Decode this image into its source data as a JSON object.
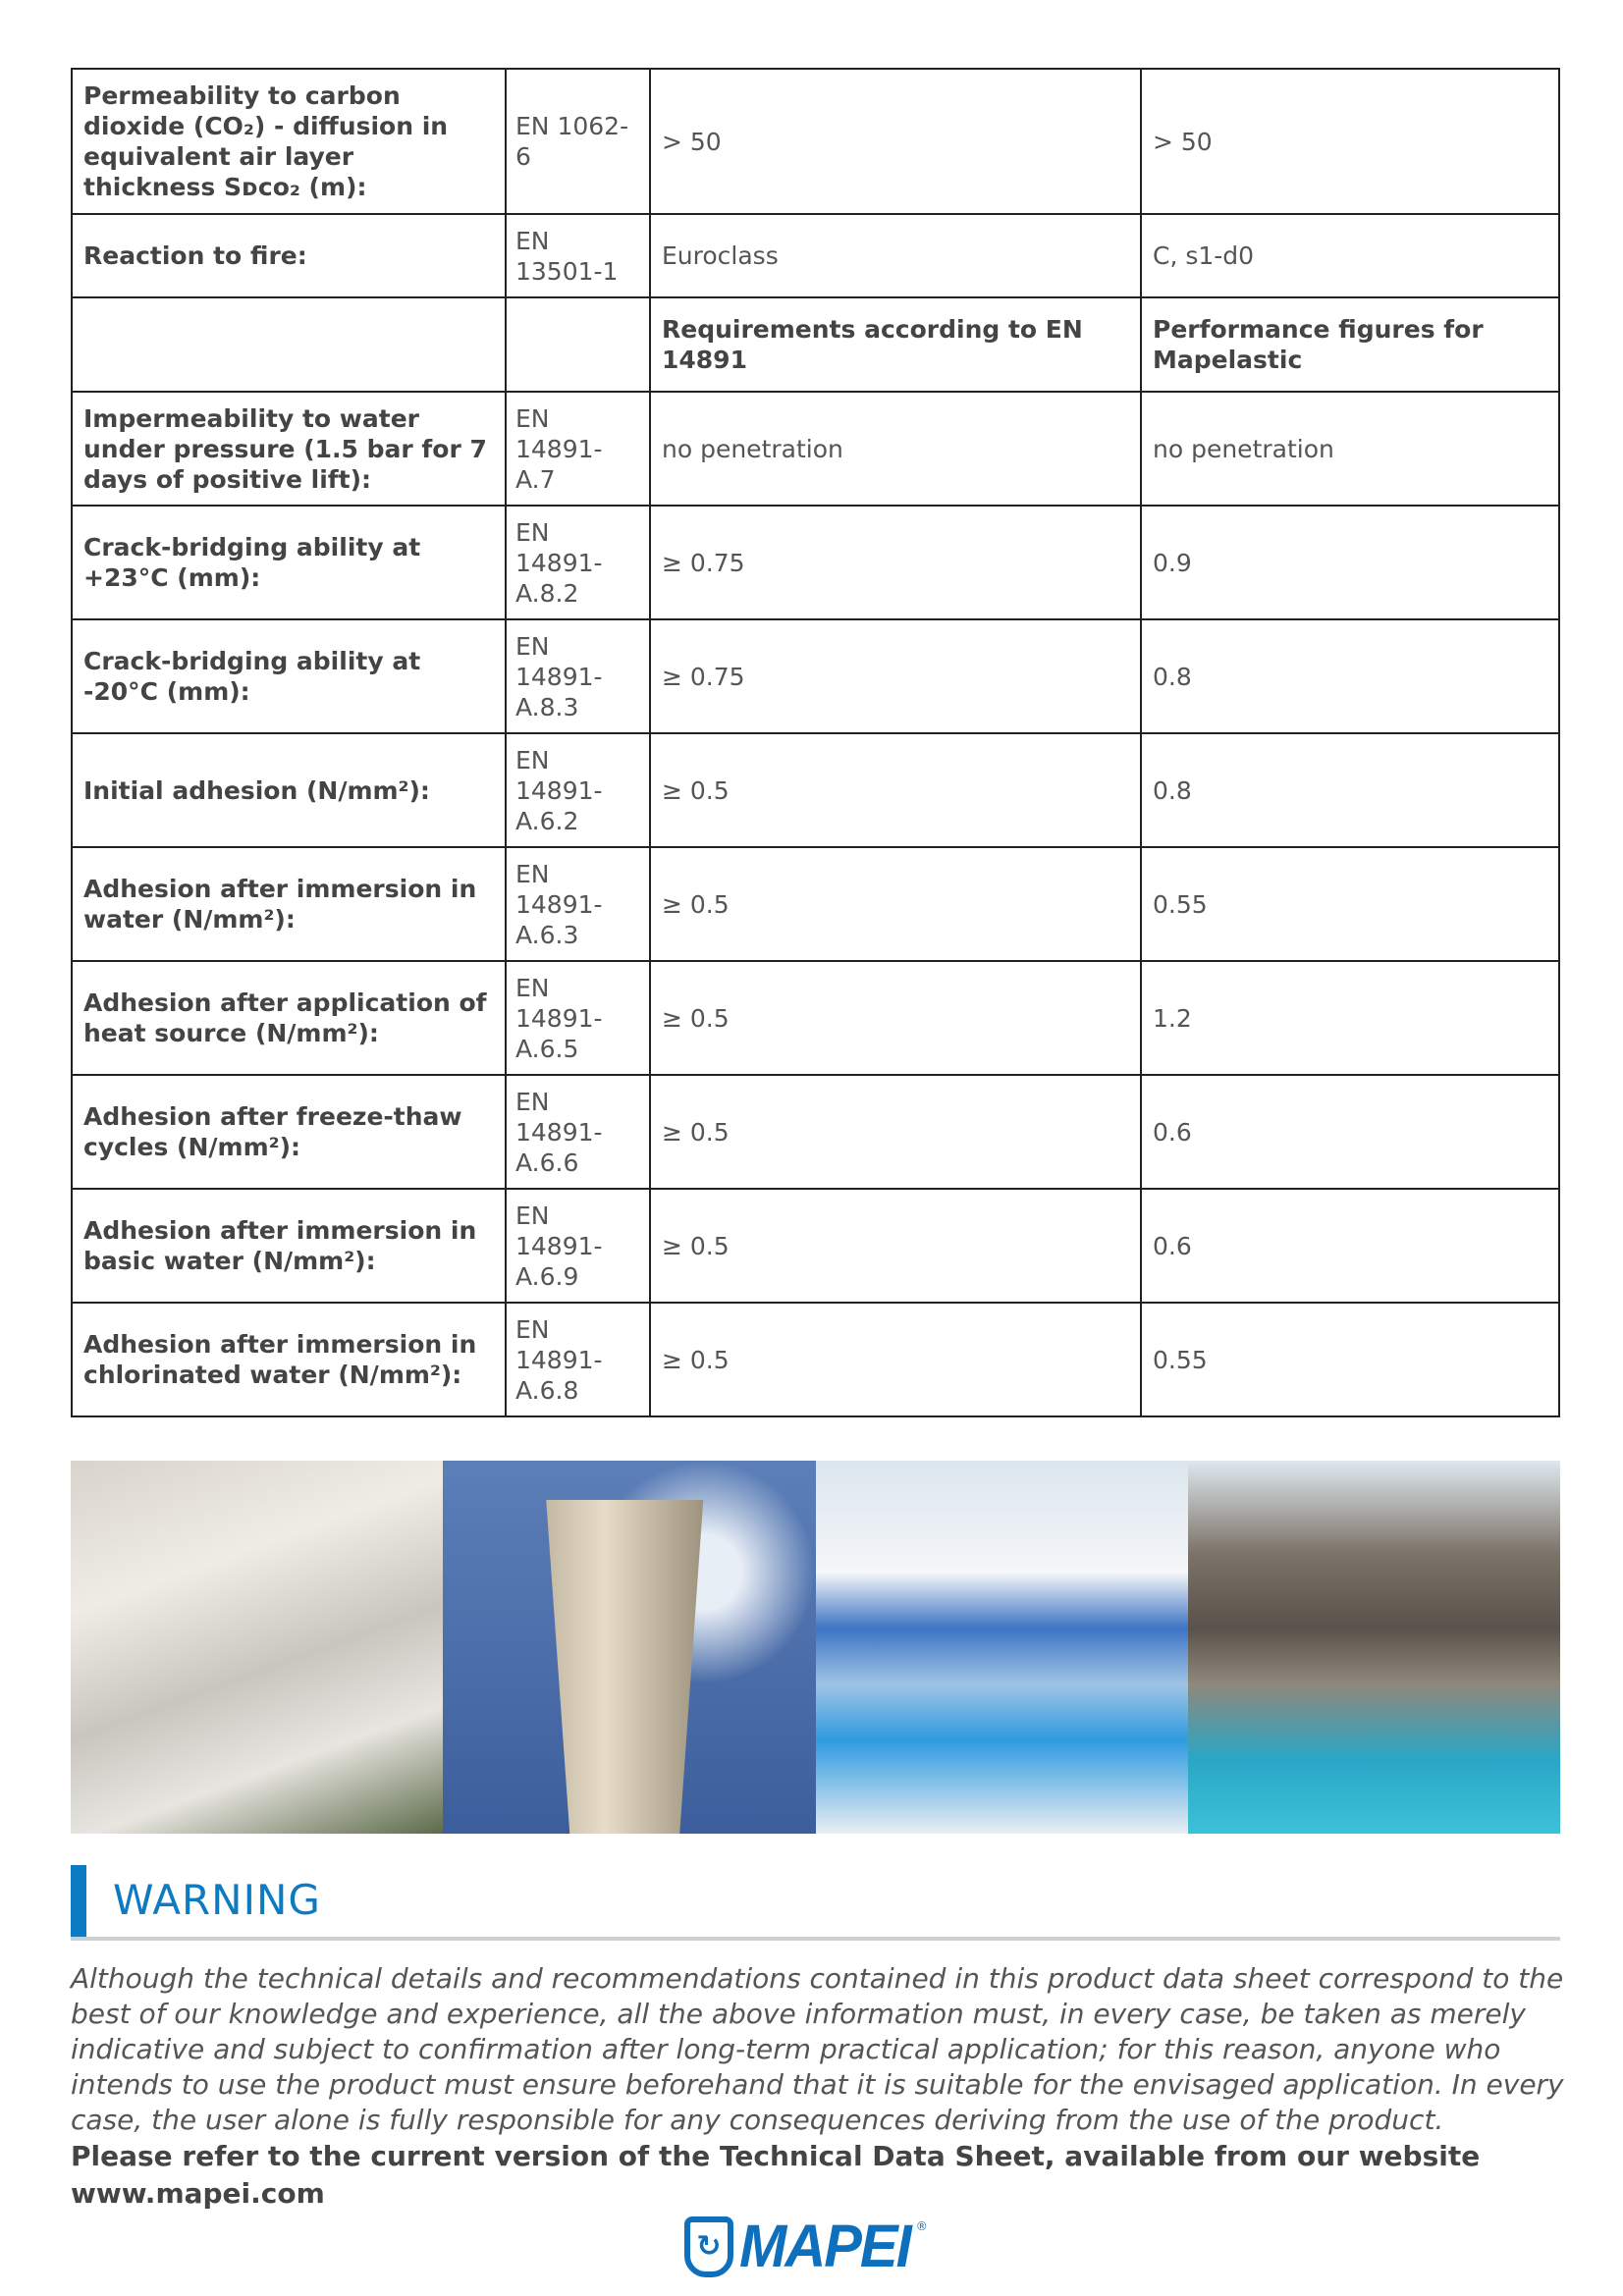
{
  "table": {
    "rows": [
      {
        "property": "Permeability to carbon dioxide (CO₂) - diffusion in equivalent air layer thickness Sᴅᴄᴏ₂ (m):",
        "standard": "EN 1062-6",
        "requirement": "> 50",
        "performance": "> 50"
      },
      {
        "property": "Reaction to fire:",
        "standard": "EN 13501-1",
        "requirement": "Euroclass",
        "performance": "C, s1-d0"
      }
    ],
    "header": {
      "requirement": "Requirements according to EN 14891",
      "performance": "Performance figures for Mapelastic"
    },
    "rows2": [
      {
        "property": "Impermeability to water under pressure (1.5 bar for 7 days of positive lift):",
        "standard": "EN 14891-A.7",
        "requirement": "no penetration",
        "performance": "no penetration"
      },
      {
        "property": "Crack-bridging ability at +23°C (mm):",
        "standard": "EN 14891-A.8.2",
        "requirement": "≥ 0.75",
        "performance": "0.9"
      },
      {
        "property": "Crack-bridging ability at -20°C (mm):",
        "standard": "EN 14891-A.8.3",
        "requirement": "≥ 0.75",
        "performance": "0.8"
      },
      {
        "property": "Initial adhesion (N/mm²):",
        "standard": "EN 14891-A.6.2",
        "requirement": "≥ 0.5",
        "performance": "0.8"
      },
      {
        "property": "Adhesion after immersion in water (N/mm²):",
        "standard": "EN 14891-A.6.3",
        "requirement": "≥ 0.5",
        "performance": "0.55"
      },
      {
        "property": "Adhesion after application of heat source (N/mm²):",
        "standard": "EN 14891-A.6.5",
        "requirement": "≥ 0.5",
        "performance": "1.2"
      },
      {
        "property": "Adhesion after freeze-thaw cycles (N/mm²):",
        "standard": "EN 14891-A.6.6",
        "requirement": "≥ 0.5",
        "performance": "0.6"
      },
      {
        "property": "Adhesion after immersion in basic water (N/mm²):",
        "standard": "EN 14891-A.6.9",
        "requirement": "≥ 0.5",
        "performance": "0.6"
      },
      {
        "property": "Adhesion after immersion in chlorinated water (N/mm²):",
        "standard": "EN 14891-A.6.8",
        "requirement": "≥ 0.5",
        "performance": "0.55"
      }
    ]
  },
  "images": [
    "terraces-photo",
    "water-tower-photo",
    "swimming-pool-photo",
    "dam-photo"
  ],
  "warning": {
    "title": "WARNING",
    "text": "Although the technical details and recommendations contained in this product data sheet correspond to the best of our knowledge and experience, all the above information must, in every case, be taken as merely indicative and subject to confirmation after long-term practical application; for this reason, anyone who intends to use the product must ensure beforehand that it is suitable for the envisaged application. In every case, the user alone is fully responsible for any consequences deriving from the use of the product.",
    "refer": "Please refer to the current version of the Technical Data Sheet, available from our website www.mapei.com"
  },
  "logo": {
    "text": "MAPEI",
    "color": "#0e6fbd"
  },
  "colors": {
    "accent": "#0e7ac1",
    "rule": "#cfcfd4"
  }
}
